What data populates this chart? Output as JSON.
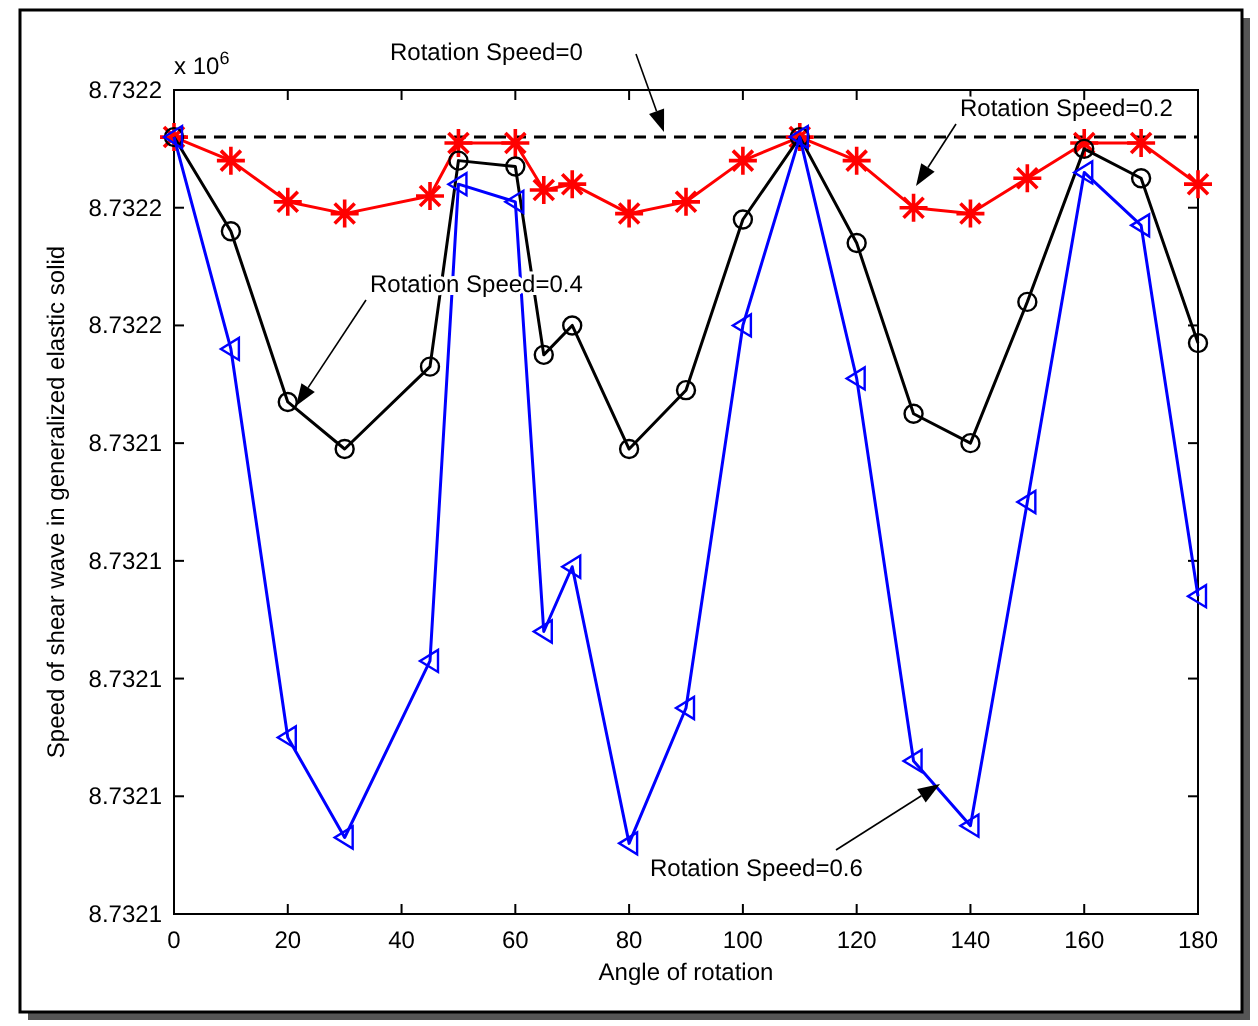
{
  "chart_data": {
    "type": "line",
    "xlabel": "Angle of rotation",
    "ylabel": "Speed of shear wave in generalized elastic solid",
    "annotations": [
      "x 10$^{6}$",
      "Rotation Speed=0",
      "Rotation Speed=0.2",
      "Rotation Speed=0.4",
      "Rotation Speed=0.6"
    ],
    "x": [
      0,
      10,
      20,
      30,
      45,
      50,
      60,
      65,
      70,
      80,
      90,
      100,
      110,
      120,
      130,
      140,
      150,
      160,
      170,
      180
    ],
    "xlim": [
      0,
      180
    ],
    "xticks": [
      0,
      20,
      40,
      60,
      80,
      100,
      120,
      140,
      160,
      180
    ],
    "ylim": [
      8.73206,
      8.7322
    ],
    "yticks": [
      {
        "value": 8.73206,
        "label": "8.7321"
      },
      {
        "value": 8.73208,
        "label": "8.7321"
      },
      {
        "value": 8.7321,
        "label": "8.7321"
      },
      {
        "value": 8.73212,
        "label": "8.7321"
      },
      {
        "value": 8.73214,
        "label": "8.7321"
      },
      {
        "value": 8.73216,
        "label": "8.7322"
      },
      {
        "value": 8.73218,
        "label": "8.7322"
      },
      {
        "value": 8.7322,
        "label": "8.7322"
      }
    ],
    "grid": false,
    "series": [
      {
        "color": "#000000",
        "x": [
          0,
          180
        ],
        "values": [
          8.732192,
          8.732192
        ],
        "line_style": "dashed"
      },
      {
        "color": "#ff0000",
        "marker": "cross",
        "line_style": "solid",
        "values": [
          8.732192,
          8.732188,
          8.732181,
          8.732179,
          8.732182,
          8.732191,
          8.732191,
          8.732183,
          8.732184,
          8.732179,
          8.732181,
          8.732188,
          8.732192,
          8.732188,
          8.73218,
          8.732179,
          8.732185,
          8.732191,
          8.732191,
          8.732184
        ]
      },
      {
        "color": "#000000",
        "marker": "circle",
        "line_style": "solid",
        "values": [
          8.732192,
          8.732176,
          8.732147,
          8.732139,
          8.732153,
          8.732188,
          8.732187,
          8.732155,
          8.73216,
          8.732139,
          8.732149,
          8.732178,
          8.732192,
          8.732174,
          8.732145,
          8.73214,
          8.732164,
          8.73219,
          8.732185,
          8.732157
        ]
      },
      {
        "color": "#0000ff",
        "marker": "triangle",
        "line_style": "solid",
        "values": [
          8.732192,
          8.732156,
          8.73209,
          8.732073,
          8.732103,
          8.732184,
          8.732181,
          8.732108,
          8.732119,
          8.732072,
          8.732095,
          8.73216,
          8.732192,
          8.732151,
          8.732086,
          8.732075,
          8.73213,
          8.732186,
          8.732177,
          8.732114
        ]
      }
    ]
  }
}
